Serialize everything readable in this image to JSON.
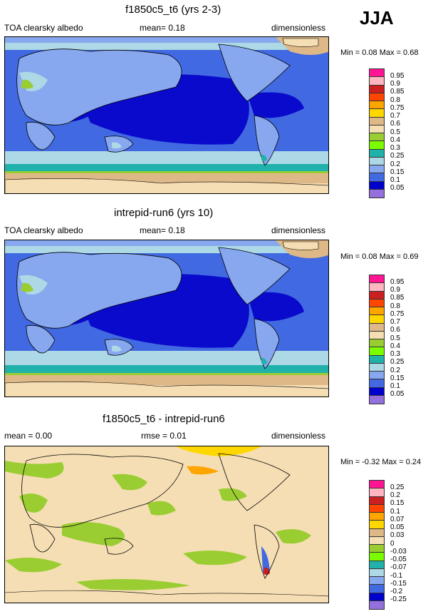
{
  "season": "JJA",
  "panels": [
    {
      "title": "f1850c5_t6 (yrs 2-3)",
      "left_label": "TOA clearsky albedo",
      "mid_label": "mean=  0.18",
      "right_label": "dimensionless",
      "minmax": "Min =   0.08 Max =   0.68",
      "legend_labels": [
        "0.95",
        "0.9",
        "0.85",
        "0.8",
        "0.75",
        "0.7",
        "0.6",
        "0.5",
        "0.4",
        "0.3",
        "0.25",
        "0.2",
        "0.15",
        "0.1",
        "0.05"
      ],
      "legend_colors": [
        "#ff1493",
        "#ffb6c1",
        "#cc1f1f",
        "#ff4500",
        "#ffa500",
        "#ffd700",
        "#deb887",
        "#f5deb3",
        "#9acd32",
        "#7cfc00",
        "#20b2aa",
        "#add8e6",
        "#87a8ee",
        "#4169e1",
        "#0000cd",
        "#9370db"
      ]
    },
    {
      "title": "intrepid-run6 (yrs 10)",
      "left_label": "TOA clearsky albedo",
      "mid_label": "mean=  0.18",
      "right_label": "dimensionless",
      "minmax": "Min =   0.08 Max =   0.69",
      "legend_labels": [
        "0.95",
        "0.9",
        "0.85",
        "0.8",
        "0.75",
        "0.7",
        "0.6",
        "0.5",
        "0.4",
        "0.3",
        "0.25",
        "0.2",
        "0.15",
        "0.1",
        "0.05"
      ],
      "legend_colors": [
        "#ff1493",
        "#ffb6c1",
        "#cc1f1f",
        "#ff4500",
        "#ffa500",
        "#ffd700",
        "#deb887",
        "#f5deb3",
        "#9acd32",
        "#7cfc00",
        "#20b2aa",
        "#add8e6",
        "#87a8ee",
        "#4169e1",
        "#0000cd",
        "#9370db"
      ]
    },
    {
      "title": "f1850c5_t6 - intrepid-run6",
      "left_label": "mean =  0.00",
      "mid_label": "rmse =  0.01",
      "right_label": "dimensionless",
      "minmax": "Min =  -0.32 Max =   0.24",
      "legend_labels": [
        "0.25",
        "0.2",
        "0.15",
        "0.1",
        "0.07",
        "0.05",
        "0.03",
        "0",
        "-0.03",
        "-0.05",
        "-0.07",
        "-0.1",
        "-0.15",
        "-0.2",
        "-0.25"
      ],
      "legend_colors": [
        "#ff1493",
        "#ffb6c1",
        "#cc1f1f",
        "#ff4500",
        "#ffa500",
        "#ffd700",
        "#deb887",
        "#f5deb3",
        "#9acd32",
        "#7cfc00",
        "#20b2aa",
        "#add8e6",
        "#87a8ee",
        "#4169e1",
        "#0000cd",
        "#9370db"
      ]
    }
  ],
  "colors": {
    "ocean_deep": "#0a0acc",
    "ocean_mid": "#4169e1",
    "ocean_light": "#87a8ee",
    "land_low": "#add8e6",
    "desert": "#9acd32",
    "ice": "#f5deb3",
    "ice_edge": "#deb887",
    "teal": "#20b2aa",
    "diff_bg": "#f5deb3",
    "diff_green": "#9acd32"
  }
}
